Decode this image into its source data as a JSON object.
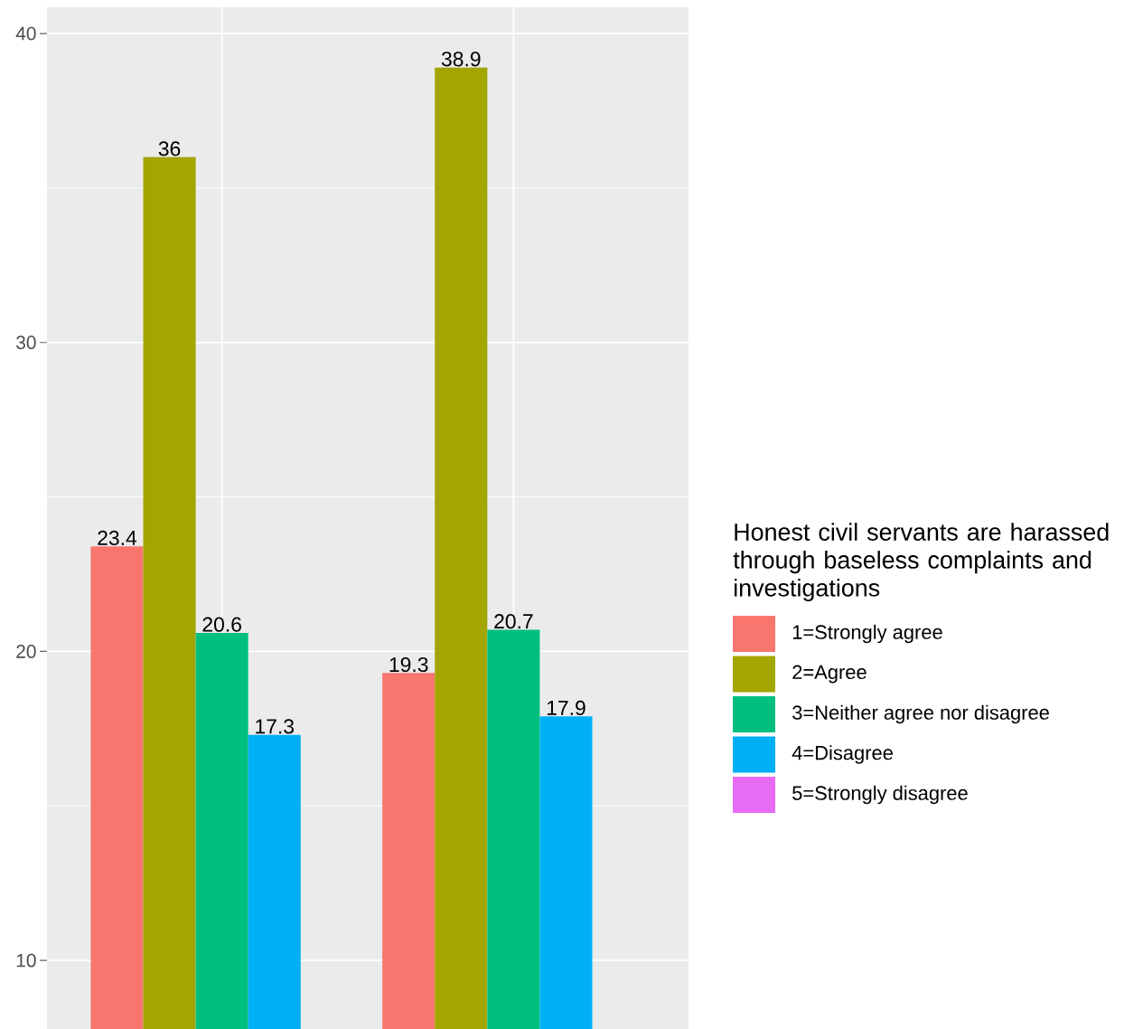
{
  "chart_data": {
    "type": "bar",
    "legend_title": "Honest civil servants are harassed through baseless complaints and investigations",
    "categories": [
      null,
      null
    ],
    "series": [
      {
        "name": "1=Strongly agree",
        "color": "#f8766d",
        "values": [
          23.4,
          19.3
        ]
      },
      {
        "name": "2=Agree",
        "color": "#a3a500",
        "values": [
          36,
          38.9
        ]
      },
      {
        "name": "3=Neither agree nor disagree",
        "color": "#00bf7d",
        "values": [
          20.6,
          20.7
        ]
      },
      {
        "name": "4=Disagree",
        "color": "#00b0f6",
        "values": [
          17.3,
          17.9
        ]
      },
      {
        "name": "5=Strongly disagree",
        "color": "#e76bf3",
        "values": [
          null,
          null
        ]
      }
    ],
    "ylim": [
      7.78,
      40.85
    ],
    "yticks": [
      10,
      20,
      30,
      40
    ],
    "grid": true,
    "legend": "right",
    "data_labels": true,
    "tick_labels": "y"
  }
}
